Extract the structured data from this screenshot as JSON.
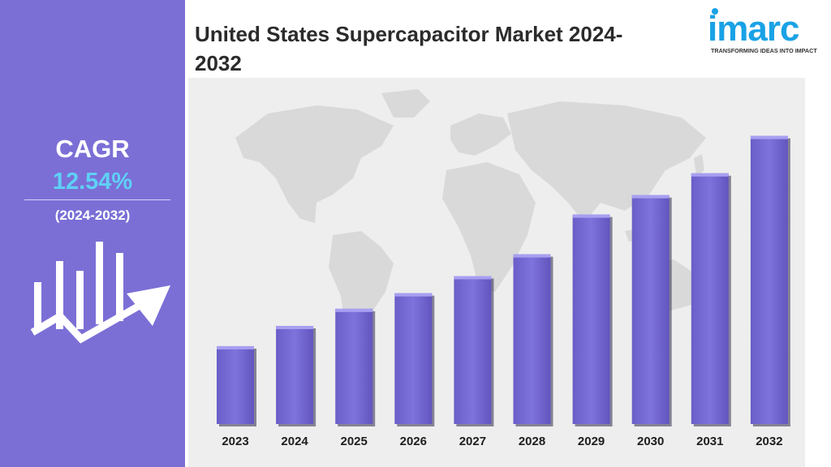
{
  "sidebar": {
    "cagr_label": "CAGR",
    "cagr_value": "12.54%",
    "cagr_period": "(2024-2032)"
  },
  "header": {
    "title_line1": "United States Supercapacitor Market 2024-",
    "title_line2": "2032"
  },
  "logo": {
    "word": "imarc",
    "tagline": "TRANSFORMING IDEAS INTO IMPACT"
  },
  "colors": {
    "sidebar": "#7b6fd6",
    "bar": "#7b6fd6",
    "accent": "#5fd0f5",
    "logo": "#1aa2e6"
  },
  "icons": [
    "growth-chart-icon",
    "world-map-background"
  ],
  "chart_data": {
    "type": "bar",
    "categories": [
      "2023",
      "2024",
      "2025",
      "2026",
      "2027",
      "2028",
      "2029",
      "2030",
      "2031",
      "2032"
    ],
    "values": [
      100,
      126,
      148,
      168,
      190,
      218,
      269,
      294,
      322,
      370
    ],
    "title": "United States Supercapacitor Market 2024-2032",
    "xlabel": "",
    "ylabel": "",
    "ylim": [
      0,
      380
    ],
    "grid": false,
    "legend": "none"
  }
}
